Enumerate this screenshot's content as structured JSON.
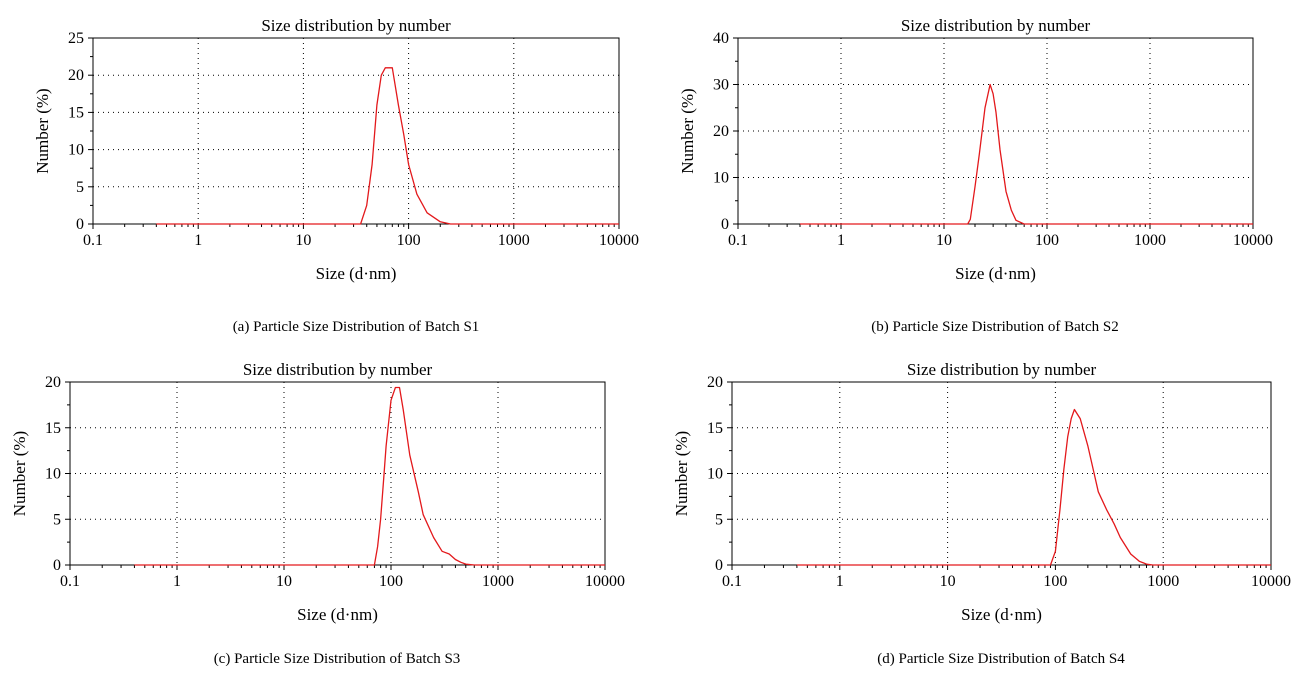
{
  "chart_data": [
    {
      "type": "line",
      "panel": "(a)",
      "title": "Size distribution by number",
      "xlabel": "Size (d·nm)",
      "ylabel": "Number (%)",
      "xscale": "log",
      "xlim": [
        0.1,
        10000
      ],
      "ylim": [
        0,
        25
      ],
      "xticks": [
        "0.1",
        "1",
        "10",
        "100",
        "1000",
        "10000"
      ],
      "yticks": [
        "0",
        "5",
        "10",
        "15",
        "20",
        "25"
      ],
      "grid": true,
      "color": "#e3191c",
      "caption": "(a)  Particle Size Distribution of Batch S1",
      "series": [
        {
          "x": [
            0.4,
            35,
            40,
            45,
            50,
            55,
            60,
            65,
            70,
            80,
            90,
            100,
            120,
            150,
            200,
            250,
            300,
            10000
          ],
          "y": [
            0,
            0,
            2.5,
            8,
            16,
            20,
            21,
            21,
            21,
            16,
            12,
            8,
            4,
            1.5,
            0.3,
            0,
            0,
            0
          ]
        }
      ]
    },
    {
      "type": "line",
      "panel": "(b)",
      "title": "Size distribution by number",
      "xlabel": "Size (d·nm)",
      "ylabel": "Number (%)",
      "xscale": "log",
      "xlim": [
        0.1,
        10000
      ],
      "ylim": [
        0,
        40
      ],
      "xticks": [
        "0.1",
        "1",
        "10",
        "100",
        "1000",
        "10000"
      ],
      "yticks": [
        "0",
        "10",
        "20",
        "30",
        "40"
      ],
      "grid": true,
      "color": "#e3191c",
      "caption": "(b)  Particle Size Distribution of Batch S2",
      "series": [
        {
          "x": [
            0.4,
            17,
            18,
            20,
            22,
            25,
            28,
            30,
            32,
            35,
            40,
            45,
            50,
            60,
            10000
          ],
          "y": [
            0,
            0,
            1,
            8,
            15,
            25,
            30,
            28,
            24,
            16,
            7,
            3,
            0.8,
            0,
            0
          ]
        }
      ]
    },
    {
      "type": "line",
      "panel": "(c)",
      "title": "Size distribution by number",
      "xlabel": "Size (d·nm)",
      "ylabel": "Number (%)",
      "xscale": "log",
      "xlim": [
        0.1,
        10000
      ],
      "ylim": [
        0,
        20
      ],
      "xticks": [
        "0.1",
        "1",
        "10",
        "100",
        "1000",
        "10000"
      ],
      "yticks": [
        "0",
        "5",
        "10",
        "15",
        "20"
      ],
      "grid": true,
      "color": "#e3191c",
      "caption": "(c)  Particle Size Distribution of Batch S3",
      "series": [
        {
          "x": [
            0.4,
            70,
            75,
            80,
            85,
            90,
            100,
            110,
            120,
            130,
            150,
            180,
            200,
            250,
            300,
            350,
            400,
            450,
            500,
            600,
            10000
          ],
          "y": [
            0,
            0,
            2,
            5,
            9,
            13,
            18,
            19.4,
            19.4,
            17,
            12,
            8,
            5.5,
            3,
            1.5,
            1.2,
            0.6,
            0.3,
            0.1,
            0,
            0
          ]
        }
      ]
    },
    {
      "type": "line",
      "panel": "(d)",
      "title": "Size distribution by number",
      "xlabel": "Size (d·nm)",
      "ylabel": "Number (%)",
      "xscale": "log",
      "xlim": [
        0.1,
        10000
      ],
      "ylim": [
        0,
        20
      ],
      "xticks": [
        "0.1",
        "1",
        "10",
        "100",
        "1000",
        "10000"
      ],
      "yticks": [
        "0",
        "5",
        "10",
        "15",
        "20"
      ],
      "grid": true,
      "color": "#e3191c",
      "caption": "(d)  Particle Size Distribution of Batch S4",
      "series": [
        {
          "x": [
            0.4,
            90,
            100,
            110,
            120,
            130,
            140,
            150,
            170,
            200,
            250,
            300,
            350,
            400,
            500,
            600,
            700,
            800,
            10000
          ],
          "y": [
            0,
            0,
            1.5,
            6,
            10.5,
            14,
            16,
            17,
            16,
            13,
            8,
            6,
            4.5,
            3,
            1.2,
            0.4,
            0.1,
            0,
            0
          ]
        }
      ]
    }
  ]
}
